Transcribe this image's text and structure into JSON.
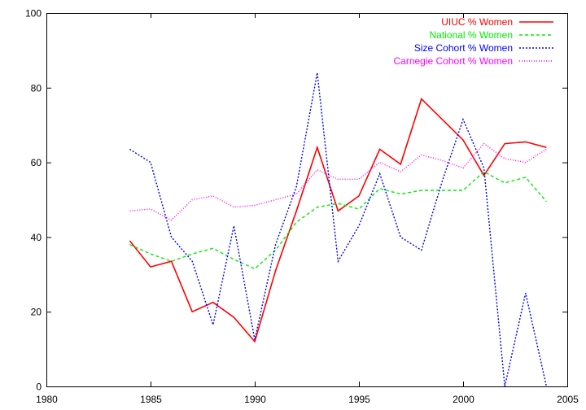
{
  "chart_data": {
    "type": "line",
    "title": "",
    "xlabel": "",
    "ylabel": "",
    "xlim": [
      1980,
      2005
    ],
    "ylim": [
      0,
      100
    ],
    "xticks": [
      "1980",
      "1985",
      "1990",
      "1995",
      "2000",
      "2005"
    ],
    "yticks": [
      "0",
      "20",
      "40",
      "60",
      "80",
      "100"
    ],
    "grid": false,
    "legend_position": "top-right",
    "x": [
      1984,
      1985,
      1986,
      1987,
      1988,
      1989,
      1990,
      1991,
      1992,
      1993,
      1994,
      1995,
      1996,
      1997,
      1998,
      1999,
      2000,
      2001,
      2002,
      2003,
      2004
    ],
    "series": [
      {
        "name": "UIUC % Women",
        "color": "#ff0000",
        "dash": "solid",
        "values": [
          39,
          32,
          33.5,
          20,
          22.5,
          18.5,
          12,
          31,
          47,
          64,
          47,
          51,
          63.5,
          59.5,
          77,
          71.5,
          66,
          56.5,
          65,
          65.5,
          64
        ]
      },
      {
        "name": "National % Women",
        "color": "#00ee00",
        "dash": "dashed",
        "values": [
          38,
          35.5,
          33.5,
          35.5,
          37,
          34,
          31.5,
          36.5,
          44,
          48,
          49,
          47.5,
          53,
          51.5,
          52.5,
          52.5,
          52.5,
          57.5,
          54.5,
          56,
          49.5
        ]
      },
      {
        "name": "Size Cohort % Women",
        "color": "#0000ff",
        "dash": "dotted",
        "values": [
          63.5,
          60,
          40,
          33.5,
          16.5,
          43,
          12.5,
          38,
          53.5,
          84,
          33.5,
          43,
          57,
          40,
          36.5,
          55,
          71.5,
          58.5,
          0,
          25,
          0
        ]
      },
      {
        "name": "Carnegie Cohort % Women",
        "color": "#ff00ff",
        "dash": "finedotted",
        "values": [
          47,
          47.5,
          44.5,
          50,
          51,
          48,
          48.5,
          50,
          51.5,
          58,
          55.5,
          55.5,
          60,
          57.5,
          62,
          60.5,
          58.5,
          65,
          61,
          60,
          63.5
        ]
      }
    ]
  }
}
